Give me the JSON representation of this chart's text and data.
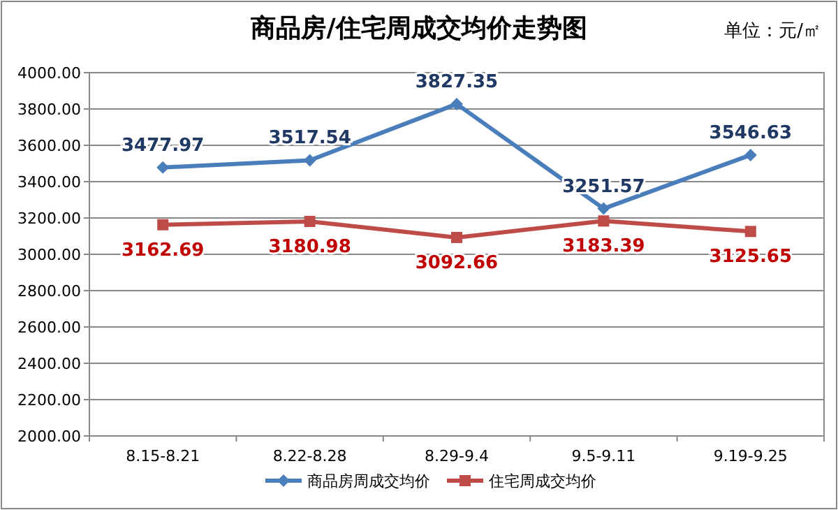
{
  "chart_data": {
    "type": "line",
    "title": "商品房/住宅周成交均价走势图",
    "annotations": [
      "单位：元/㎡"
    ],
    "categories": [
      "8.15-8.21",
      "8.22-8.28",
      "8.29-9.4",
      "9.5-9.11",
      "9.19-9.25"
    ],
    "series": [
      {
        "name": "商品房周成交均价",
        "color": "#4a7ebb",
        "marker": "diamond",
        "values": [
          3477.97,
          3517.54,
          3827.35,
          3251.57,
          3546.63
        ]
      },
      {
        "name": "住宅周成交均价",
        "color": "#be4b48",
        "marker": "square",
        "values": [
          3162.69,
          3180.98,
          3092.66,
          3183.39,
          3125.65
        ]
      }
    ],
    "ylim": [
      2000,
      4000
    ],
    "yticks": [
      {
        "value": 2000,
        "label": "2000.00"
      },
      {
        "value": 2200,
        "label": "2200.00"
      },
      {
        "value": 2400,
        "label": "2400.00"
      },
      {
        "value": 2600,
        "label": "2600.00"
      },
      {
        "value": 2800,
        "label": "2800.00"
      },
      {
        "value": 3000,
        "label": "3000.00"
      },
      {
        "value": 3200,
        "label": "3200.00"
      },
      {
        "value": 3400,
        "label": "3400.00"
      },
      {
        "value": 3600,
        "label": "3600.00"
      },
      {
        "value": 3800,
        "label": "3800.00"
      },
      {
        "value": 4000,
        "label": "4000.00"
      }
    ],
    "grid": "y",
    "legend": "bottom",
    "data_labels": true,
    "line_style": "solid"
  }
}
